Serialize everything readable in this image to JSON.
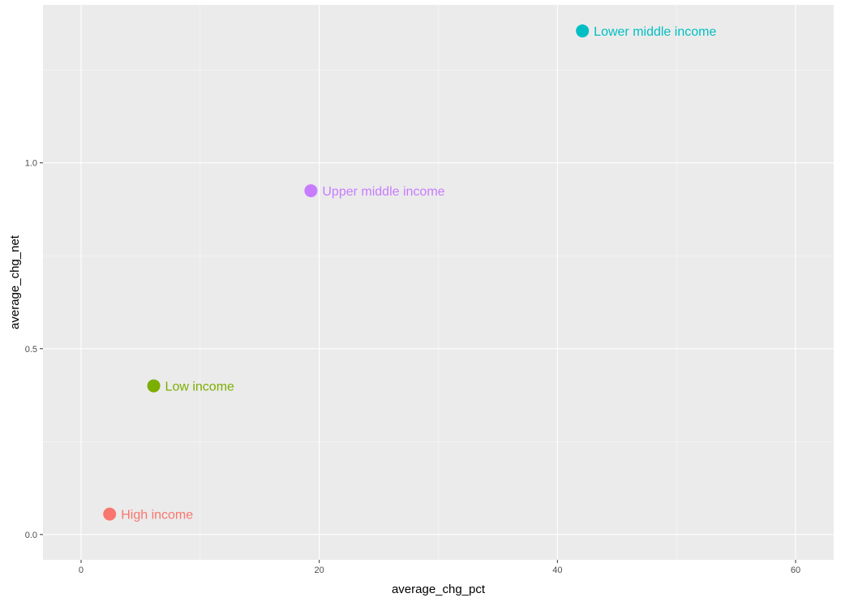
{
  "chart_data": {
    "type": "scatter",
    "title": "",
    "xlabel": "average_chg_pct",
    "ylabel": "average_chg_net",
    "xlim": [
      -3.2,
      63.2
    ],
    "ylim": [
      -0.068,
      1.425
    ],
    "x_ticks": [
      0,
      20,
      40,
      60
    ],
    "x_tick_labels": [
      "0",
      "20",
      "40",
      "60"
    ],
    "y_ticks": [
      0.0,
      0.5,
      1.0
    ],
    "y_tick_labels": [
      "0.0",
      "0.5",
      "1.0"
    ],
    "grid": true,
    "legend": "none",
    "points": [
      {
        "label": "High income",
        "x": 2.4,
        "y": 0.055,
        "color": "#f8766d"
      },
      {
        "label": "Low income",
        "x": 6.1,
        "y": 0.4,
        "color": "#7cae00"
      },
      {
        "label": "Upper middle income",
        "x": 19.3,
        "y": 0.925,
        "color": "#c77cff"
      },
      {
        "label": "Lower middle income",
        "x": 42.1,
        "y": 1.355,
        "color": "#00bfc4"
      }
    ]
  }
}
